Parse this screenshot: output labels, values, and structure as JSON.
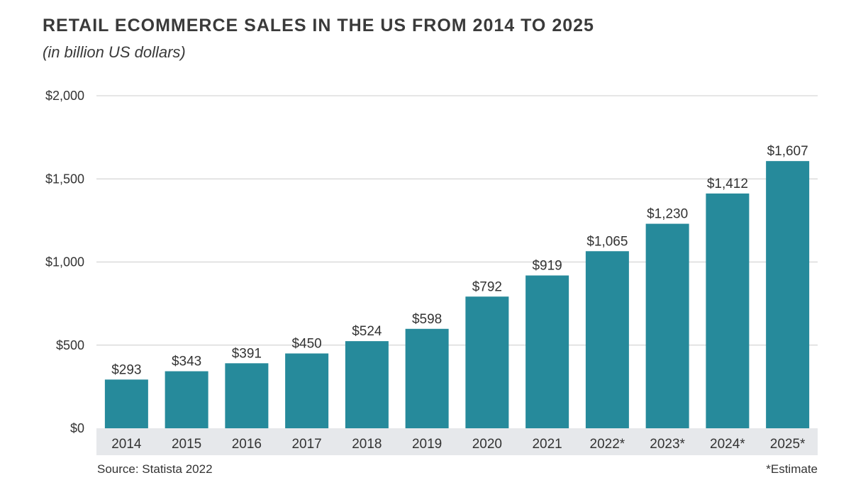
{
  "chart_data": {
    "type": "bar",
    "title": "RETAIL ECOMMERCE SALES IN THE US FROM 2014 TO 2025",
    "subtitle": "(in billion US dollars)",
    "categories": [
      "2014",
      "2015",
      "2016",
      "2017",
      "2018",
      "2019",
      "2020",
      "2021",
      "2022*",
      "2023*",
      "2024*",
      "2025*"
    ],
    "values": [
      293,
      343,
      391,
      450,
      524,
      598,
      792,
      919,
      1065,
      1230,
      1412,
      1607
    ],
    "value_labels": [
      "$293",
      "$343",
      "$391",
      "$450",
      "$524",
      "$598",
      "$792",
      "$919",
      "$1,065",
      "$1,230",
      "$1,412",
      "$1,607"
    ],
    "y_ticks": [
      0,
      500,
      1000,
      1500,
      2000
    ],
    "y_tick_labels": [
      "$0",
      "$500",
      "$1,000",
      "$1,500",
      "$2,000"
    ],
    "ylim": [
      0,
      2000
    ],
    "grid": true,
    "bar_color": "#268a9b",
    "axis_band_color": "#e6e8eb",
    "gridline_color": "#cccccc"
  },
  "footer": {
    "source": "Source: Statista 2022",
    "note": "*Estimate"
  }
}
